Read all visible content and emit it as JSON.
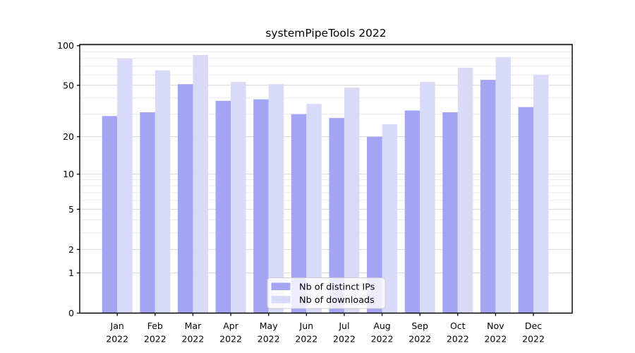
{
  "chart_data": {
    "type": "bar",
    "title": "systemPipeTools 2022",
    "categories": [
      "Jan",
      "Feb",
      "Mar",
      "Apr",
      "May",
      "Jun",
      "Jul",
      "Aug",
      "Sep",
      "Oct",
      "Nov",
      "Dec"
    ],
    "category_year_label": "2022",
    "series": [
      {
        "name": "Nb of distinct IPs",
        "color": "#a4a4f4",
        "values": [
          29,
          31,
          51,
          38,
          39,
          30,
          28,
          20,
          32,
          31,
          55,
          34
        ]
      },
      {
        "name": "Nb of downloads",
        "color": "#d9d9f8",
        "values": [
          80,
          65,
          85,
          53,
          51,
          36,
          48,
          25,
          53,
          68,
          82,
          60
        ]
      }
    ],
    "xlabel": "",
    "ylabel": "",
    "yscale": "log1p",
    "ylim": [
      0,
      102
    ],
    "y_major_ticks": [
      0,
      1,
      2,
      5,
      10,
      20,
      50,
      100
    ],
    "y_minor_gridlines": [
      3,
      4,
      6,
      7,
      8,
      9,
      30,
      40,
      60,
      70,
      80,
      90
    ],
    "grid": "horizontal",
    "legend_position": "lower-center"
  },
  "colors": {
    "axis": "#000000",
    "grid_major": "#d7d7d7",
    "grid_minor": "#ececec",
    "legend_background": "rgba(255,255,255,0.8)",
    "legend_border": "#cccccc",
    "text": "#000000"
  }
}
